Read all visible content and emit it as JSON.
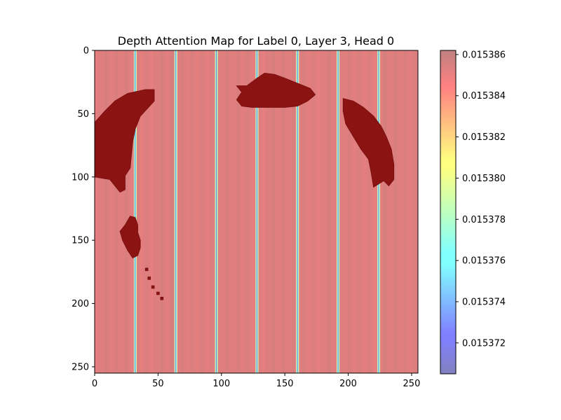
{
  "chart_data": {
    "type": "heatmap",
    "title": "Depth Attention Map for Label 0, Layer 3, Head 0",
    "xlabel": "",
    "ylabel": "",
    "xlim": [
      0,
      255
    ],
    "ylim": [
      255,
      0
    ],
    "x_ticks": [
      0,
      50,
      100,
      150,
      200,
      250
    ],
    "y_ticks": [
      0,
      50,
      100,
      150,
      200,
      250
    ],
    "grid": false,
    "colormap": "jet",
    "alpha": 0.5,
    "colorbar": {
      "vmin": 0.0153705,
      "vmax": 0.0153862,
      "ticks": [
        "0.015372",
        "0.015374",
        "0.015376",
        "0.015378",
        "0.015380",
        "0.015382",
        "0.015384",
        "0.015386"
      ],
      "tick_values": [
        0.015372,
        0.015374,
        0.015376,
        0.015378,
        0.01538,
        0.015382,
        0.015384,
        0.015386
      ]
    },
    "background_value": 0.0153852,
    "column_stripes": [
      {
        "x": 32,
        "value": 0.0153705
      },
      {
        "x": 64,
        "value": 0.0153705
      },
      {
        "x": 96,
        "value": 0.0153705
      },
      {
        "x": 128,
        "value": 0.0153705
      },
      {
        "x": 160,
        "value": 0.0153705
      },
      {
        "x": 192,
        "value": 0.0153705
      },
      {
        "x": 224,
        "value": 0.0153705
      }
    ],
    "overlay_regions": [
      {
        "name": "left-arc",
        "points": [
          [
            0,
            57
          ],
          [
            8,
            48
          ],
          [
            16,
            40
          ],
          [
            26,
            34
          ],
          [
            40,
            31
          ],
          [
            47,
            31
          ],
          [
            47,
            40
          ],
          [
            36,
            52
          ],
          [
            32,
            62
          ],
          [
            30,
            72
          ],
          [
            28,
            93
          ],
          [
            24,
            99
          ],
          [
            24,
            110
          ],
          [
            20,
            112
          ],
          [
            12,
            102
          ],
          [
            0,
            100
          ]
        ]
      },
      {
        "name": "top-center-blob",
        "points": [
          [
            112,
            28
          ],
          [
            120,
            28
          ],
          [
            128,
            22
          ],
          [
            134,
            18
          ],
          [
            142,
            19
          ],
          [
            150,
            22
          ],
          [
            160,
            26
          ],
          [
            170,
            30
          ],
          [
            174,
            35
          ],
          [
            168,
            40
          ],
          [
            160,
            44
          ],
          [
            150,
            45
          ],
          [
            136,
            45
          ],
          [
            124,
            45
          ],
          [
            116,
            44
          ],
          [
            112,
            39
          ],
          [
            116,
            33
          ]
        ]
      },
      {
        "name": "right-arc",
        "points": [
          [
            196,
            38
          ],
          [
            204,
            40
          ],
          [
            212,
            45
          ],
          [
            220,
            52
          ],
          [
            226,
            60
          ],
          [
            230,
            68
          ],
          [
            234,
            78
          ],
          [
            236,
            90
          ],
          [
            236,
            102
          ],
          [
            232,
            107
          ],
          [
            228,
            103
          ],
          [
            220,
            108
          ],
          [
            218,
            96
          ],
          [
            216,
            86
          ],
          [
            210,
            78
          ],
          [
            204,
            68
          ],
          [
            198,
            58
          ],
          [
            196,
            48
          ]
        ]
      },
      {
        "name": "left-lower-blob",
        "points": [
          [
            24,
            138
          ],
          [
            28,
            131
          ],
          [
            32,
            132
          ],
          [
            34,
            138
          ],
          [
            34,
            144
          ],
          [
            36,
            150
          ],
          [
            36,
            156
          ],
          [
            34,
            162
          ],
          [
            30,
            164
          ],
          [
            26,
            158
          ],
          [
            22,
            150
          ],
          [
            20,
            143
          ]
        ]
      },
      {
        "name": "dot-1",
        "points": [
          [
            40,
            172
          ],
          [
            42,
            172
          ],
          [
            42,
            174
          ],
          [
            40,
            174
          ]
        ]
      },
      {
        "name": "dot-2",
        "points": [
          [
            42,
            179
          ],
          [
            44,
            179
          ],
          [
            44,
            181
          ],
          [
            42,
            181
          ]
        ]
      },
      {
        "name": "dot-3",
        "points": [
          [
            45,
            186
          ],
          [
            47,
            186
          ],
          [
            47,
            188
          ],
          [
            45,
            188
          ]
        ]
      },
      {
        "name": "dot-4",
        "points": [
          [
            49,
            191
          ],
          [
            51,
            191
          ],
          [
            51,
            193
          ],
          [
            49,
            193
          ]
        ]
      },
      {
        "name": "dot-5",
        "points": [
          [
            52,
            195
          ],
          [
            54,
            195
          ],
          [
            54,
            197
          ],
          [
            52,
            197
          ]
        ]
      }
    ]
  }
}
